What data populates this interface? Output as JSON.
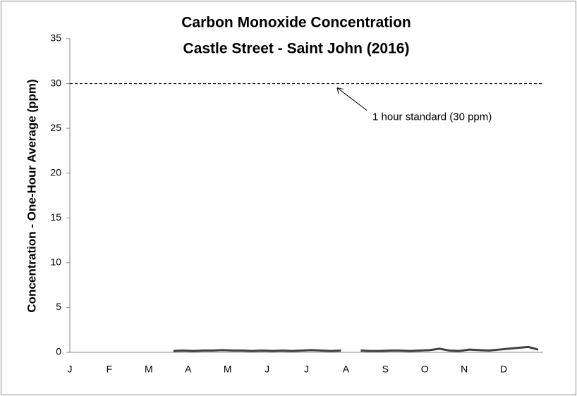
{
  "chart_data": {
    "type": "line",
    "title": [
      "Carbon Monoxide Concentration",
      "Castle Street - Saint John (2016)"
    ],
    "ylabel": "Concentration - One-Hour Average (ppm)",
    "categories": [
      "J",
      null,
      null,
      null,
      "F",
      null,
      null,
      null,
      "M",
      null,
      null,
      null,
      "A",
      null,
      null,
      null,
      "M",
      null,
      null,
      null,
      "J",
      null,
      null,
      null,
      "J",
      null,
      null,
      null,
      "A",
      null,
      null,
      null,
      "S",
      null,
      null,
      null,
      "O",
      null,
      null,
      null,
      "N",
      null,
      null,
      null,
      "D",
      null,
      null,
      null
    ],
    "series": [
      {
        "name": "CO",
        "color": "#404040",
        "values": [
          null,
          null,
          null,
          null,
          null,
          null,
          null,
          null,
          null,
          null,
          0.15,
          0.2,
          0.15,
          0.2,
          0.2,
          0.25,
          0.2,
          0.2,
          0.15,
          0.2,
          0.15,
          0.2,
          0.15,
          0.2,
          0.25,
          0.2,
          0.15,
          0.2,
          null,
          0.2,
          0.15,
          0.15,
          0.2,
          0.2,
          0.15,
          0.2,
          0.25,
          0.4,
          0.2,
          0.15,
          0.3,
          0.25,
          0.2,
          0.3,
          0.4,
          0.5,
          0.6,
          0.3
        ]
      }
    ],
    "reference_lines": [
      {
        "value": 30,
        "label": "1 hour standard (30 ppm)"
      }
    ],
    "ylim": [
      0,
      35
    ],
    "yticks": [
      0,
      5,
      10,
      15,
      20,
      25,
      30,
      35
    ]
  }
}
